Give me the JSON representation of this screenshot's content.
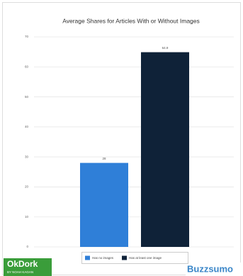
{
  "chart_data": {
    "type": "bar",
    "title": "Average Shares for Articles With or Without Images",
    "series": [
      {
        "name": "Has no images",
        "color": "#2f7fd8",
        "values": [
          28
        ]
      },
      {
        "name": "Has at least one image",
        "color": "#0f2238",
        "values": [
          64.9
        ]
      }
    ],
    "ylim": [
      0,
      70
    ],
    "yticks": [
      0,
      10,
      20,
      30,
      40,
      50,
      60,
      70
    ],
    "grid": true,
    "legend": "bottom"
  },
  "logos": {
    "left": "OkDork",
    "left_sub": "BY NOAH KAGAN",
    "right": "Buzzsumo"
  }
}
